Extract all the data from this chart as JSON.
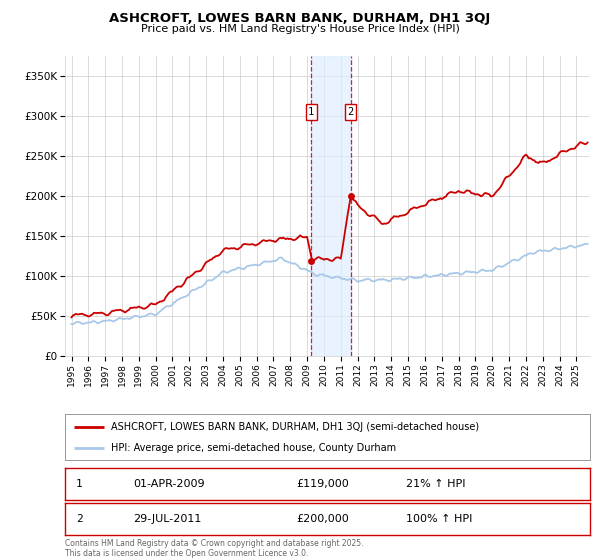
{
  "title": "ASHCROFT, LOWES BARN BANK, DURHAM, DH1 3QJ",
  "subtitle": "Price paid vs. HM Land Registry's House Price Index (HPI)",
  "legend_entry1": "ASHCROFT, LOWES BARN BANK, DURHAM, DH1 3QJ (semi-detached house)",
  "legend_entry2": "HPI: Average price, semi-detached house, County Durham",
  "transaction1_label": "1",
  "transaction1_date": "01-APR-2009",
  "transaction1_price": "£119,000",
  "transaction1_hpi": "21% ↑ HPI",
  "transaction2_label": "2",
  "transaction2_date": "29-JUL-2011",
  "transaction2_price": "£200,000",
  "transaction2_hpi": "100% ↑ HPI",
  "footer1": "Contains HM Land Registry data © Crown copyright and database right 2025.",
  "footer2": "This data is licensed under the Open Government Licence v3.0.",
  "hpi_color": "#a8c8e8",
  "price_color": "#cc0000",
  "transaction1_x": 2009.25,
  "transaction2_x": 2011.58,
  "transaction1_y_price": 119000,
  "transaction2_y_price": 200000,
  "shade_x1": 2009.25,
  "shade_x2": 2011.58,
  "ylim_max": 375000,
  "yticks": [
    0,
    50000,
    100000,
    150000,
    200000,
    250000,
    300000,
    350000
  ],
  "ytick_labels": [
    "£0",
    "£50K",
    "£100K",
    "£150K",
    "£200K",
    "£250K",
    "£300K",
    "£350K"
  ],
  "xlim_min": 1994.6,
  "xlim_max": 2025.8,
  "background_color": "#ffffff",
  "grid_color": "#cccccc"
}
